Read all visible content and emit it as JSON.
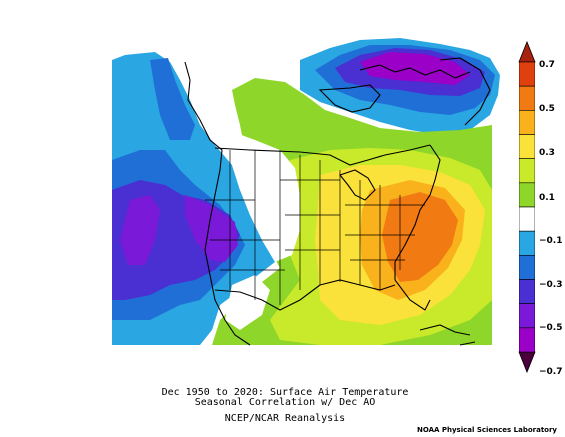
{
  "figure": {
    "title_line1": "Dec 1950 to 2020: Surface Air Temperature",
    "title_line2": "Seasonal Correlation w/ Dec AO",
    "title_line3": "NCEP/NCAR Reanalysis",
    "credit": "NOAA Physical Sciences Laboratory"
  },
  "colorbar": {
    "labels": [
      "0.7",
      "0.5",
      "0.3",
      "0.1",
      "−0.1",
      "−0.3",
      "−0.5",
      "−0.7"
    ],
    "levels": [
      {
        "range": "> 0.7",
        "color": "#a8230f"
      },
      {
        "range": "0.6 to 0.7",
        "color": "#e0400e"
      },
      {
        "range": "0.5 to 0.6",
        "color": "#f27a12"
      },
      {
        "range": "0.4 to 0.5",
        "color": "#f9b21c"
      },
      {
        "range": "0.3 to 0.4",
        "color": "#fbe23a"
      },
      {
        "range": "0.2 to 0.3",
        "color": "#c9ea2a"
      },
      {
        "range": "0.1 to 0.2",
        "color": "#8fd62a"
      },
      {
        "range": "-0.1 to 0.1",
        "color": "#ffffff"
      },
      {
        "range": "-0.2 to -0.1",
        "color": "#2aa7e2"
      },
      {
        "range": "-0.3 to -0.2",
        "color": "#1f6fd6"
      },
      {
        "range": "-0.4 to -0.3",
        "color": "#4a2fd2"
      },
      {
        "range": "-0.5 to -0.4",
        "color": "#7a1ad8"
      },
      {
        "range": "-0.6 to -0.5",
        "color": "#9a00c8"
      },
      {
        "range": "< -0.7",
        "color": "#4a003a"
      }
    ]
  }
}
